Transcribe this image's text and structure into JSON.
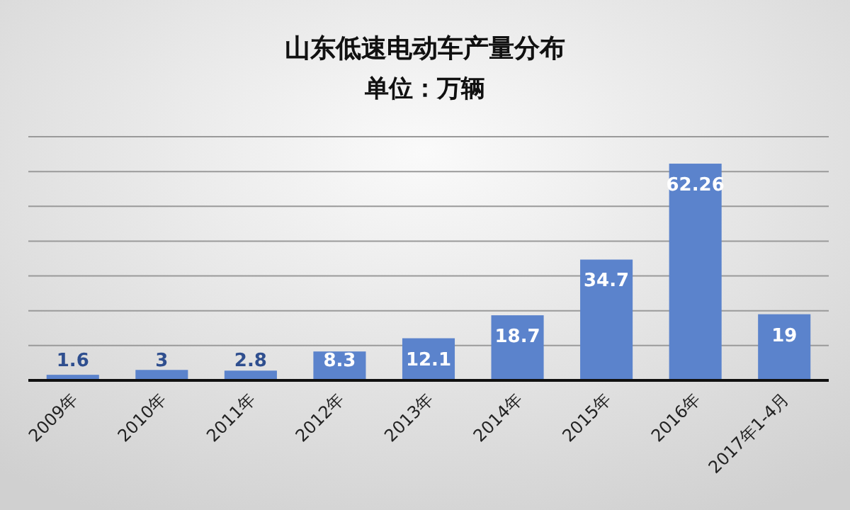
{
  "chart_data": {
    "type": "bar",
    "title": "山东低速电动车产量分布",
    "subtitle": "单位：万辆",
    "categories": [
      "2009年",
      "2010年",
      "2011年",
      "2012年",
      "2013年",
      "2014年",
      "2015年",
      "2016年",
      "2017年1-4月"
    ],
    "values": [
      1.6,
      3,
      2.8,
      8.3,
      12.1,
      18.7,
      34.7,
      62.26,
      19
    ],
    "color": "#5b83cc",
    "ylim": [
      0,
      70
    ],
    "yticks": [
      {
        "value": 0,
        "label": null
      },
      {
        "value": 10,
        "label": null
      },
      {
        "value": 20,
        "label": null
      },
      {
        "value": 30,
        "label": null
      },
      {
        "value": 40,
        "label": null
      },
      {
        "value": 50,
        "label": null
      },
      {
        "value": 60,
        "label": null
      },
      {
        "value": 70,
        "label": null
      }
    ],
    "tick_labels": "x",
    "grid": "y",
    "data_labels": true
  }
}
